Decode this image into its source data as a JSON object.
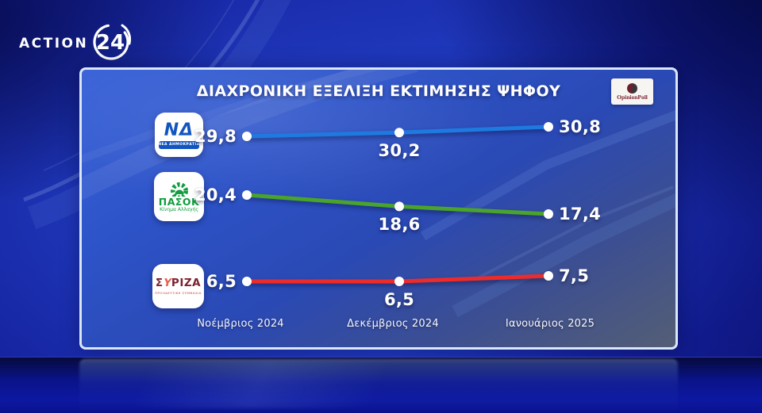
{
  "channel": {
    "logo_text": "ACTION",
    "logo_number": "24"
  },
  "card": {
    "title": "ΔΙΑΧΡΟΝΙΚΗ ΕΞΕΛΙΞΗ ΕΚΤΙΜΗΣΗΣ ΨΗΦΟΥ",
    "source_label": "OpinionPoll"
  },
  "parties": [
    {
      "id": "nd",
      "short": "ΝΔ",
      "caption": "ΝΕΑ ΔΗΜΟΚΡΑΤΙΑ"
    },
    {
      "id": "pasok",
      "short": "ΠΑΣΟΚ",
      "caption": "Κίνημα Αλλαγής"
    },
    {
      "id": "syriza",
      "short": "ΣΥΡΙΖΑ",
      "caption": "ΠΡΟΟΔΕΥΤΙΚΗ ΣΥΜΜΑΧΙΑ",
      "glyphs": {
        "p1": "Σ",
        "p2": "Υ",
        "p3": "ΡΙΖΑ"
      }
    }
  ],
  "chart_data": {
    "type": "line",
    "title": "ΔΙΑΧΡΟΝΙΚΗ ΕΞΕΛΙΞΗ ΕΚΤΙΜΗΣΗΣ ΨΗΦΟΥ",
    "categories": [
      "Νοέμβριος 2024",
      "Δεκέμβριος 2024",
      "Ιανουάριος 2025"
    ],
    "series": [
      {
        "name": "ΝΔ",
        "color": "#1f7ae0",
        "values": [
          29.8,
          30.2,
          30.8
        ],
        "labels": [
          "29,8",
          "30,2",
          "30,8"
        ]
      },
      {
        "name": "ΠΑΣΟΚ",
        "color": "#4aa32a",
        "values": [
          20.4,
          18.6,
          17.4
        ],
        "labels": [
          "20,4",
          "18,6",
          "17,4"
        ]
      },
      {
        "name": "ΣΥΡΙΖΑ",
        "color": "#ee2b2b",
        "values": [
          6.5,
          6.5,
          7.5
        ],
        "labels": [
          "6,5",
          "6,5",
          "7,5"
        ]
      }
    ],
    "grid": false,
    "legend_position": "left-logos",
    "point_marker_color": "#ffffff",
    "source": "OpinionPoll"
  }
}
